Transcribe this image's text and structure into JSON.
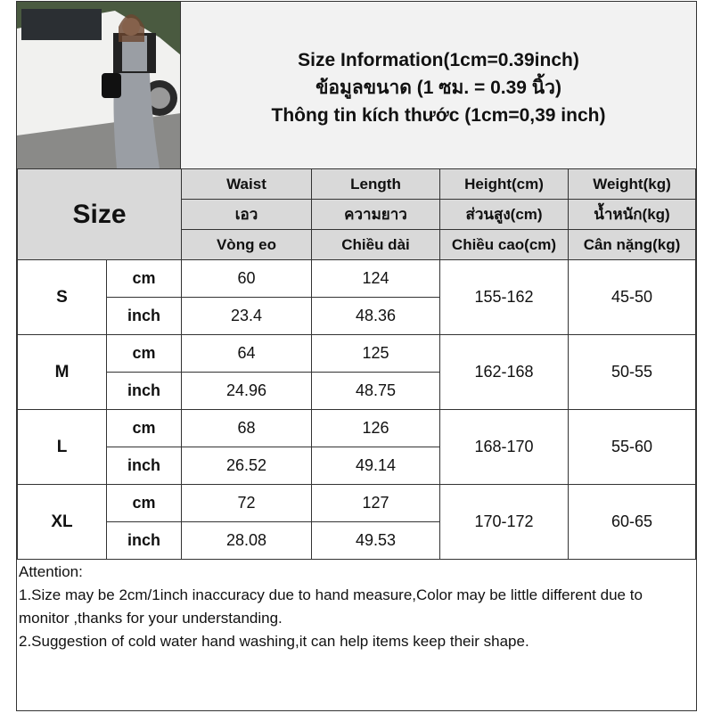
{
  "title_lines": [
    "Size Information(1cm=0.39inch)",
    "ข้อมูลขนาด (1 ซม. = 0.39 นิ้ว)",
    "Thông tin kích thước (1cm=0,39 inch)"
  ],
  "size_header": "Size",
  "columns": [
    {
      "en": "Waist",
      "th": "เอว",
      "vi": "Vòng eo"
    },
    {
      "en": "Length",
      "th": "ความยาว",
      "vi": "Chiều dài"
    },
    {
      "en": "Height(cm)",
      "th": "ส่วนสูง(cm)",
      "vi": "Chiều cao(cm)"
    },
    {
      "en": "Weight(kg)",
      "th": "น้ำหนัก(kg)",
      "vi": "Cân nặng(kg)"
    }
  ],
  "unit_cm": "cm",
  "unit_inch": "inch",
  "rows": [
    {
      "size": "S",
      "waist_cm": "60",
      "length_cm": "124",
      "waist_in": "23.4",
      "length_in": "48.36",
      "height": "155-162",
      "weight": "45-50"
    },
    {
      "size": "M",
      "waist_cm": "64",
      "length_cm": "125",
      "waist_in": "24.96",
      "length_in": "48.75",
      "height": "162-168",
      "weight": "50-55"
    },
    {
      "size": "L",
      "waist_cm": "68",
      "length_cm": "126",
      "waist_in": "26.52",
      "length_in": "49.14",
      "height": "168-170",
      "weight": "55-60"
    },
    {
      "size": "XL",
      "waist_cm": "72",
      "length_cm": "127",
      "waist_in": "28.08",
      "length_in": "49.53",
      "height": "170-172",
      "weight": "60-65"
    }
  ],
  "notes": [
    "Attention:",
    "1.Size may be 2cm/1inch inaccuracy due to hand measure,Color may be little different due to monitor ,thanks for your understanding.",
    "2.Suggestion of cold water hand washing,it can help items keep their shape."
  ],
  "colors": {
    "header_bg": "#f2f2f2",
    "column_header_bg": "#d9d9d9",
    "border": "#333333"
  }
}
